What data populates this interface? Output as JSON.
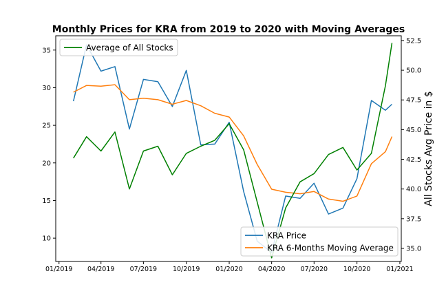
{
  "chart_data": {
    "type": "line",
    "title": "Monthly Prices for KRA from 2019 to 2020 with Moving Averages",
    "xlabel": "",
    "ylabel_left": "",
    "ylabel_right": "All Stocks Avg Price in $",
    "x": [
      "2019-02-01",
      "2019-03-01",
      "2019-04-01",
      "2019-05-01",
      "2019-06-01",
      "2019-07-01",
      "2019-08-01",
      "2019-09-01",
      "2019-10-01",
      "2019-11-01",
      "2019-12-01",
      "2020-01-01",
      "2020-02-01",
      "2020-03-01",
      "2020-04-01",
      "2020-05-01",
      "2020-06-01",
      "2020-07-01",
      "2020-08-01",
      "2020-09-01",
      "2020-10-01",
      "2020-11-01",
      "2020-12-01",
      "2020-12-15"
    ],
    "x_range": [
      "2018-12-25",
      "2021-01-04"
    ],
    "x_ticks": [
      "2019-01-01",
      "2019-04-01",
      "2019-07-01",
      "2019-10-01",
      "2020-01-01",
      "2020-04-01",
      "2020-07-01",
      "2020-10-01",
      "2021-01-01"
    ],
    "x_tick_labels": [
      "01/2019",
      "04/2019",
      "07/2019",
      "10/2019",
      "01/2020",
      "04/2020",
      "07/2020",
      "10/2020",
      "01/2021"
    ],
    "left_axis": {
      "ylim": [
        6.9,
        36.9
      ],
      "ticks": [
        10,
        15,
        20,
        25,
        30,
        35
      ]
    },
    "right_axis": {
      "ylim": [
        33.9,
        52.9
      ],
      "ticks": [
        35.0,
        37.5,
        40.0,
        42.5,
        45.0,
        47.5,
        50.0,
        52.5
      ],
      "tick_labels": [
        "35.0",
        "37.5",
        "40.0",
        "42.5",
        "45.0",
        "47.5",
        "50.0",
        "52.5"
      ]
    },
    "series": [
      {
        "name": "KRA Price",
        "axis": "left",
        "color": "#1f77b4",
        "values": [
          28.2,
          35.7,
          32.2,
          32.8,
          24.5,
          31.1,
          30.8,
          27.5,
          32.3,
          22.4,
          22.5,
          25.4,
          16.2,
          9.6,
          8.1,
          15.6,
          15.3,
          17.3,
          13.2,
          14.0,
          17.9,
          28.3,
          27.0,
          27.8
        ]
      },
      {
        "name": "KRA 6-Months Moving Average",
        "axis": "left",
        "color": "#ff7f0e",
        "values": [
          29.4,
          30.3,
          30.2,
          30.4,
          28.4,
          28.6,
          28.4,
          27.8,
          28.3,
          27.6,
          26.6,
          26.1,
          23.6,
          19.8,
          16.5,
          16.1,
          15.9,
          16.2,
          15.2,
          14.9,
          15.6,
          19.9,
          21.5,
          23.5
        ]
      },
      {
        "name": "Average of All Stocks",
        "axis": "right",
        "color": "#008000",
        "values": [
          42.6,
          44.4,
          43.2,
          44.8,
          40.0,
          43.2,
          43.6,
          41.2,
          43.0,
          43.6,
          44.1,
          45.5,
          43.3,
          38.9,
          34.2,
          38.4,
          40.6,
          41.3,
          42.9,
          43.5,
          41.6,
          43.0,
          48.7,
          52.3
        ]
      }
    ],
    "legend_upper": {
      "placement": "upper-left",
      "entries": [
        "Average of All Stocks"
      ]
    },
    "legend_lower": {
      "placement": "lower-right",
      "entries": [
        "KRA Price",
        "KRA 6-Months Moving Average"
      ]
    },
    "grid": false
  }
}
